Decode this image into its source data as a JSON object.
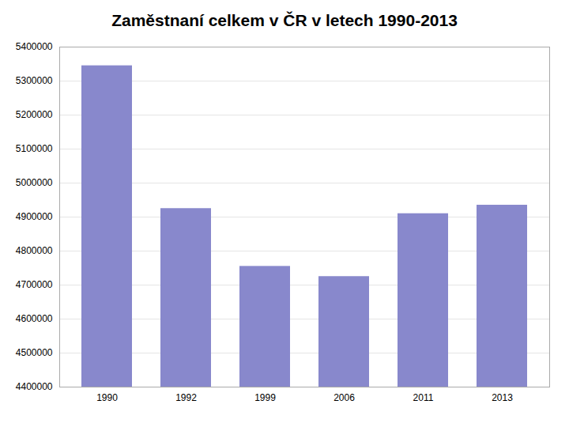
{
  "chart_data": {
    "type": "bar",
    "title": "Zaměstnaní celkem v ČR v letech 1990-2013",
    "categories": [
      "1990",
      "1992",
      "1999",
      "2006",
      "2011",
      "2013"
    ],
    "values": [
      5345000,
      4925000,
      4755000,
      4725000,
      4910000,
      4935000
    ],
    "color": "#8888cc",
    "ylim": [
      4400000,
      5400000
    ],
    "yticks": [
      4400000,
      4500000,
      4600000,
      4700000,
      4800000,
      4900000,
      5000000,
      5100000,
      5200000,
      5300000,
      5400000
    ],
    "grid": true
  }
}
